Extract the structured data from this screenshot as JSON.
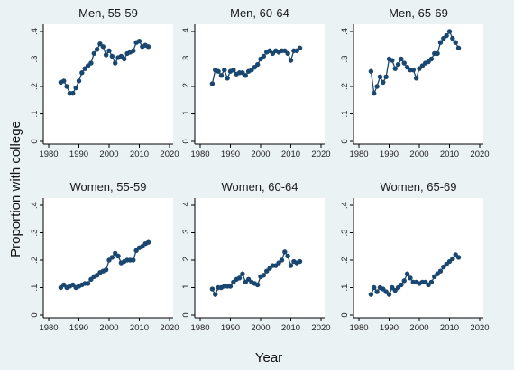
{
  "chart_data": {
    "type": "line",
    "xlabel": "Year",
    "ylabel": "Proportion with college",
    "xlim": [
      1980,
      2020
    ],
    "ylim": [
      0,
      0.4
    ],
    "x_ticks": [
      1980,
      1990,
      2000,
      2010,
      2020
    ],
    "y_ticks": [
      0,
      0.1,
      0.2,
      0.3,
      0.4
    ],
    "x_tick_labels": [
      "1980",
      "1990",
      "2000",
      "2010",
      "2020"
    ],
    "y_tick_labels": [
      "0",
      ".1",
      ".2",
      ".3",
      ".4"
    ],
    "x": [
      1984,
      1985,
      1986,
      1987,
      1988,
      1989,
      1990,
      1991,
      1992,
      1993,
      1994,
      1995,
      1996,
      1997,
      1998,
      1999,
      2000,
      2001,
      2002,
      2003,
      2004,
      2005,
      2006,
      2007,
      2008,
      2009,
      2010,
      2011,
      2012,
      2013
    ],
    "panels": [
      {
        "title": "Men, 55-59",
        "values": [
          0.215,
          0.22,
          0.2,
          0.175,
          0.175,
          0.195,
          0.22,
          0.25,
          0.265,
          0.275,
          0.285,
          0.32,
          0.335,
          0.355,
          0.345,
          0.315,
          0.33,
          0.31,
          0.285,
          0.305,
          0.31,
          0.3,
          0.32,
          0.325,
          0.33,
          0.36,
          0.365,
          0.345,
          0.35,
          0.345
        ]
      },
      {
        "title": "Men, 60-64",
        "values": [
          0.21,
          0.26,
          0.255,
          0.24,
          0.26,
          0.23,
          0.255,
          0.26,
          0.245,
          0.25,
          0.25,
          0.24,
          0.255,
          0.26,
          0.27,
          0.28,
          0.3,
          0.31,
          0.325,
          0.33,
          0.32,
          0.33,
          0.325,
          0.33,
          0.33,
          0.32,
          0.295,
          0.33,
          0.33,
          0.34
        ]
      },
      {
        "title": "Men, 65-69",
        "values": [
          0.255,
          0.175,
          0.2,
          0.235,
          0.215,
          0.235,
          0.3,
          0.295,
          0.265,
          0.28,
          0.3,
          0.285,
          0.27,
          0.26,
          0.26,
          0.23,
          0.265,
          0.275,
          0.285,
          0.29,
          0.3,
          0.32,
          0.32,
          0.36,
          0.375,
          0.385,
          0.4,
          0.375,
          0.36,
          0.34
        ]
      },
      {
        "title": "Women, 55-59",
        "values": [
          0.1,
          0.11,
          0.1,
          0.105,
          0.11,
          0.1,
          0.105,
          0.11,
          0.115,
          0.115,
          0.13,
          0.14,
          0.145,
          0.155,
          0.16,
          0.165,
          0.2,
          0.21,
          0.225,
          0.215,
          0.19,
          0.195,
          0.2,
          0.2,
          0.2,
          0.235,
          0.245,
          0.25,
          0.26,
          0.265
        ]
      },
      {
        "title": "Women, 60-64",
        "values": [
          0.095,
          0.075,
          0.1,
          0.1,
          0.105,
          0.105,
          0.105,
          0.12,
          0.13,
          0.135,
          0.15,
          0.12,
          0.13,
          0.12,
          0.115,
          0.11,
          0.14,
          0.145,
          0.16,
          0.17,
          0.18,
          0.18,
          0.19,
          0.2,
          0.23,
          0.215,
          0.18,
          0.195,
          0.19,
          0.195
        ]
      },
      {
        "title": "Women, 65-69",
        "values": [
          0.075,
          0.1,
          0.085,
          0.1,
          0.095,
          0.085,
          0.075,
          0.1,
          0.09,
          0.1,
          0.11,
          0.125,
          0.15,
          0.135,
          0.12,
          0.12,
          0.115,
          0.12,
          0.12,
          0.11,
          0.12,
          0.14,
          0.15,
          0.16,
          0.175,
          0.185,
          0.195,
          0.205,
          0.22,
          0.21
        ]
      }
    ]
  }
}
